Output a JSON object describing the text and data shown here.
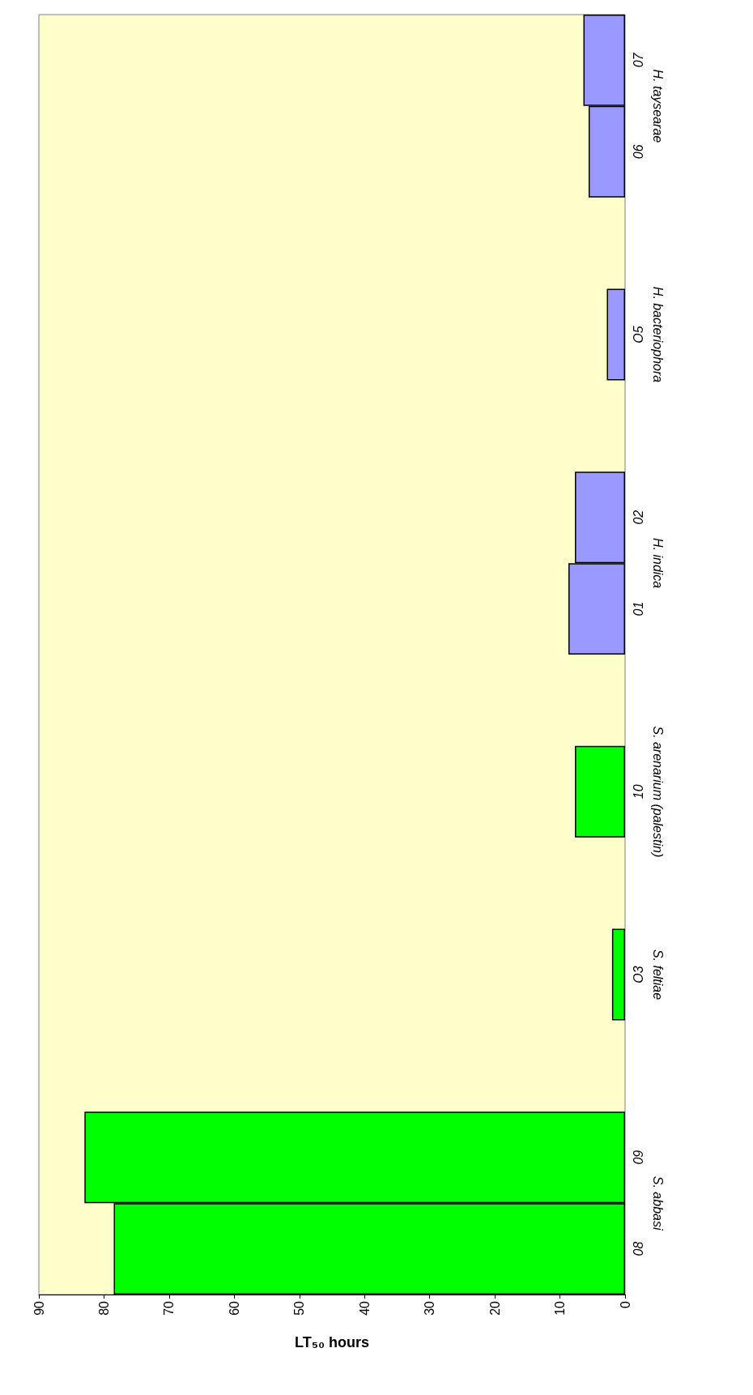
{
  "chart_data": {
    "type": "bar",
    "orientation": "horizontal",
    "xlabel": "LT₅₀ hours",
    "categories": [
      "07",
      "06",
      null,
      "O5",
      null,
      "02",
      "01",
      null,
      "10",
      null,
      "O3",
      null,
      "09",
      "08"
    ],
    "values": [
      6.4,
      5.6,
      null,
      2.8,
      null,
      7.7,
      8.7,
      null,
      7.7,
      null,
      2.0,
      null,
      83,
      78.5
    ],
    "colors": [
      "#9999ff",
      "#9999ff",
      null,
      "#9999ff",
      null,
      "#9999ff",
      "#9999ff",
      null,
      "#00ff00",
      null,
      "#00ff00",
      null,
      "#00ff00",
      "#00ff00"
    ],
    "xlim": [
      90,
      0
    ],
    "xticks": [
      0,
      10,
      20,
      30,
      40,
      50,
      60,
      70,
      80,
      90
    ],
    "grid": false,
    "annotations": [
      "H. taysearae",
      "H. bacteriophora",
      "H. indica",
      "S. arenarium (palestin)",
      "S. feltiae",
      "S. abbasi"
    ]
  }
}
